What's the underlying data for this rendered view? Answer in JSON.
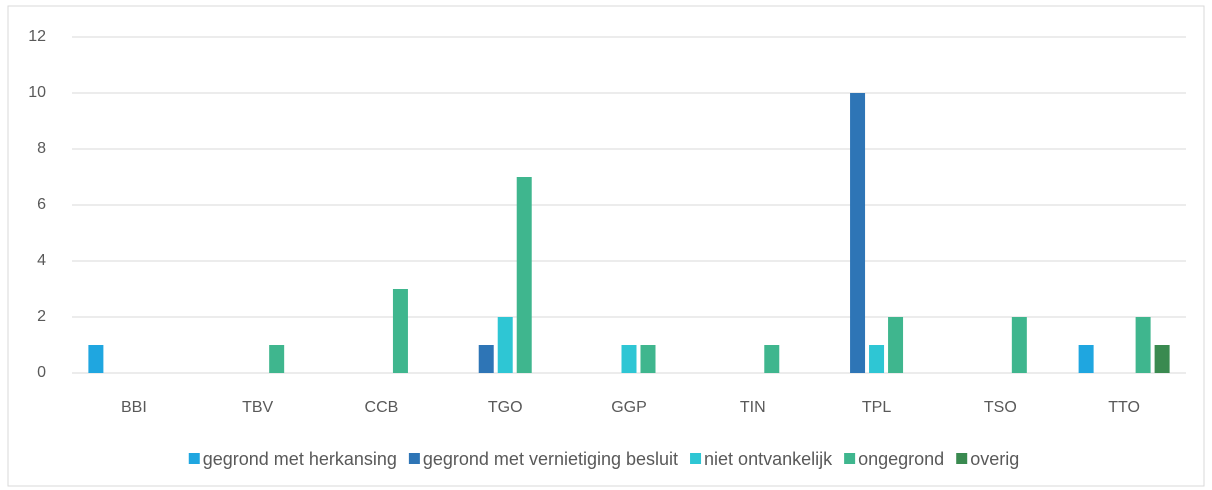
{
  "chart_data": {
    "type": "bar",
    "categories": [
      "BBI",
      "TBV",
      "CCB",
      "TGO",
      "GGP",
      "TIN",
      "TPL",
      "TSO",
      "TTO"
    ],
    "series": [
      {
        "name": "gegrond met herkansing",
        "color": "#1fa6e0",
        "values": [
          1,
          null,
          null,
          null,
          null,
          null,
          null,
          null,
          1
        ]
      },
      {
        "name": "gegrond met vernietiging besluit",
        "color": "#2e75b6",
        "values": [
          null,
          null,
          null,
          1,
          null,
          null,
          10,
          null,
          null
        ]
      },
      {
        "name": "niet ontvankelijk",
        "color": "#2ec6d4",
        "values": [
          null,
          null,
          null,
          2,
          1,
          null,
          1,
          null,
          null
        ]
      },
      {
        "name": "ongegrond",
        "color": "#3fb68e",
        "values": [
          null,
          1,
          3,
          7,
          1,
          1,
          2,
          2,
          2
        ]
      },
      {
        "name": "overig",
        "color": "#3a8a50",
        "values": [
          null,
          null,
          null,
          null,
          null,
          null,
          null,
          null,
          1
        ]
      }
    ],
    "ylim": [
      0,
      12
    ],
    "yticks": [
      0,
      2,
      4,
      6,
      8,
      10,
      12
    ],
    "grid": true,
    "legend": "bottom"
  }
}
